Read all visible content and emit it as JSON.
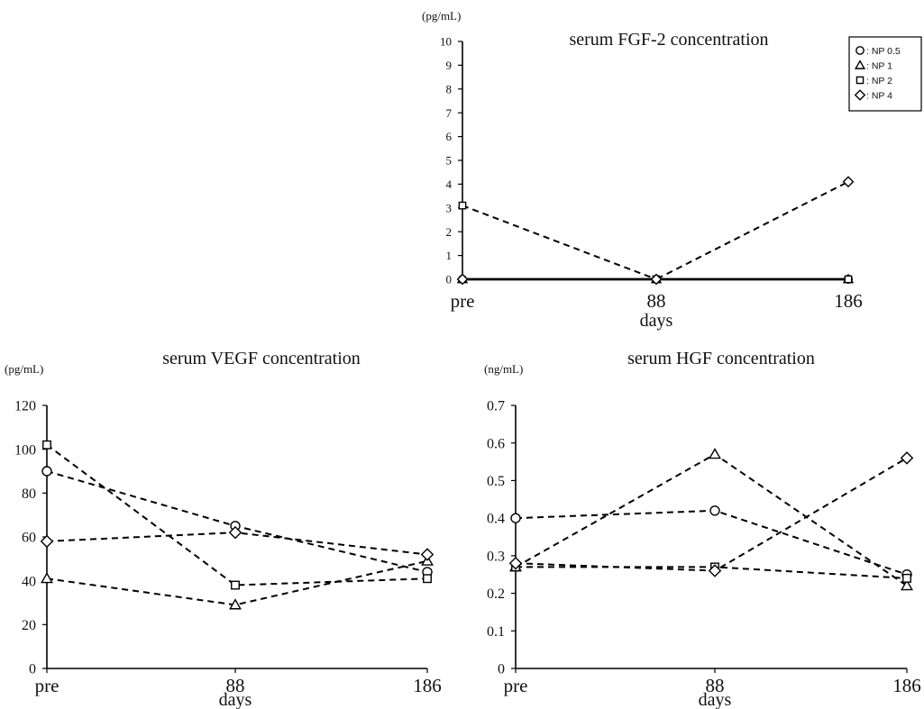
{
  "legend": {
    "entries": [
      {
        "marker": "circle",
        "label": ": NP 0.5"
      },
      {
        "marker": "triangle",
        "label": ": NP 1"
      },
      {
        "marker": "square",
        "label": ": NP 2"
      },
      {
        "marker": "diamond",
        "label": ": NP 4"
      }
    ]
  },
  "chart_data": [
    {
      "id": "fgf2",
      "type": "line",
      "title": "serum FGF-2 concentration",
      "unit": "(pg/mL)",
      "xlabel": "days",
      "ylabel": "",
      "categories": [
        "pre",
        "88",
        "186"
      ],
      "ylim": [
        0,
        10
      ],
      "yticks": [
        "0",
        "1",
        "2",
        "3",
        "4",
        "5",
        "6",
        "7",
        "8",
        "9",
        "10"
      ],
      "series": [
        {
          "name": "NP 0.5",
          "marker": "circle",
          "values": [
            0,
            0,
            0
          ],
          "style": "solid"
        },
        {
          "name": "NP 1",
          "marker": "triangle",
          "values": [
            0,
            0,
            0
          ],
          "style": "solid"
        },
        {
          "name": "NP 2",
          "marker": "square",
          "values": [
            3.1,
            0,
            0
          ],
          "style": "dashed"
        },
        {
          "name": "NP 4",
          "marker": "diamond",
          "values": [
            0,
            0,
            4.1
          ],
          "style": "dashed"
        }
      ]
    },
    {
      "id": "vegf",
      "type": "line",
      "title": "serum VEGF concentration",
      "unit": "(pg/mL)",
      "xlabel": "days",
      "ylabel": "",
      "categories": [
        "pre",
        "88",
        "186"
      ],
      "ylim": [
        0,
        120
      ],
      "yticks": [
        "0",
        "20",
        "40",
        "60",
        "80",
        "100",
        "120"
      ],
      "series": [
        {
          "name": "NP 0.5",
          "marker": "circle",
          "values": [
            90,
            65,
            44
          ],
          "style": "dashed"
        },
        {
          "name": "NP 1",
          "marker": "triangle",
          "values": [
            41,
            29,
            49
          ],
          "style": "dashed"
        },
        {
          "name": "NP 2",
          "marker": "square",
          "values": [
            102,
            38,
            41
          ],
          "style": "dashed"
        },
        {
          "name": "NP 4",
          "marker": "diamond",
          "values": [
            58,
            62,
            52
          ],
          "style": "dashed"
        }
      ]
    },
    {
      "id": "hgf",
      "type": "line",
      "title": "serum HGF concentration",
      "unit": "(ng/mL)",
      "xlabel": "days",
      "ylabel": "",
      "categories": [
        "pre",
        "88",
        "186"
      ],
      "ylim": [
        0,
        0.7
      ],
      "yticks": [
        "0",
        "0.1",
        "0.2",
        "0.3",
        "0.4",
        "0.5",
        "0.6",
        "0.7"
      ],
      "series": [
        {
          "name": "NP 0.5",
          "marker": "circle",
          "values": [
            0.4,
            0.42,
            0.25
          ],
          "style": "dashed"
        },
        {
          "name": "NP 1",
          "marker": "triangle",
          "values": [
            0.27,
            0.57,
            0.22
          ],
          "style": "dashed"
        },
        {
          "name": "NP 2",
          "marker": "square",
          "values": [
            0.27,
            0.27,
            0.24
          ],
          "style": "dashed"
        },
        {
          "name": "NP 4",
          "marker": "diamond",
          "values": [
            0.28,
            0.26,
            0.56
          ],
          "style": "dashed"
        }
      ]
    }
  ]
}
